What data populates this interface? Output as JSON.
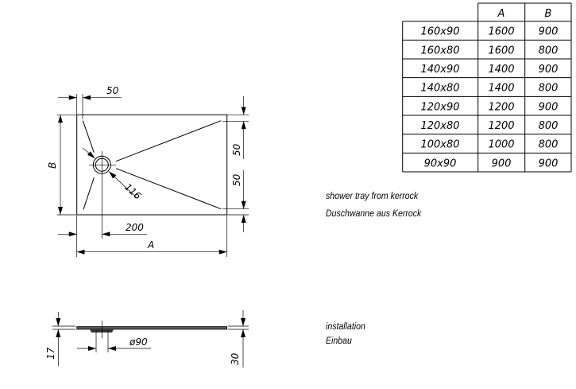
{
  "plan_view": {
    "dimensions": {
      "drain_offset_top": "50",
      "width_label": "B",
      "channel_top": "50",
      "channel_bottom": "50",
      "drain_diagonal": "116",
      "drain_offset_side": "200",
      "length_label": "A"
    }
  },
  "section_view": {
    "dimensions": {
      "drain_diameter": "ø90",
      "edge_height": "17",
      "total_height": "30"
    }
  },
  "size_table": {
    "headers": [
      "",
      "A",
      "B"
    ],
    "rows": [
      [
        "160x90",
        "1600",
        "900"
      ],
      [
        "160x80",
        "1600",
        "800"
      ],
      [
        "140x90",
        "1400",
        "900"
      ],
      [
        "140x80",
        "1400",
        "800"
      ],
      [
        "120x90",
        "1200",
        "900"
      ],
      [
        "120x80",
        "1200",
        "800"
      ],
      [
        "100x80",
        "1000",
        "800"
      ],
      [
        "90x90",
        "900",
        "900"
      ]
    ]
  },
  "notes": {
    "material_en": "shower tray from kerrock",
    "material_de": "Duschwanne aus Kerrock",
    "installation_en": "installation",
    "installation_de": "Einbau"
  }
}
